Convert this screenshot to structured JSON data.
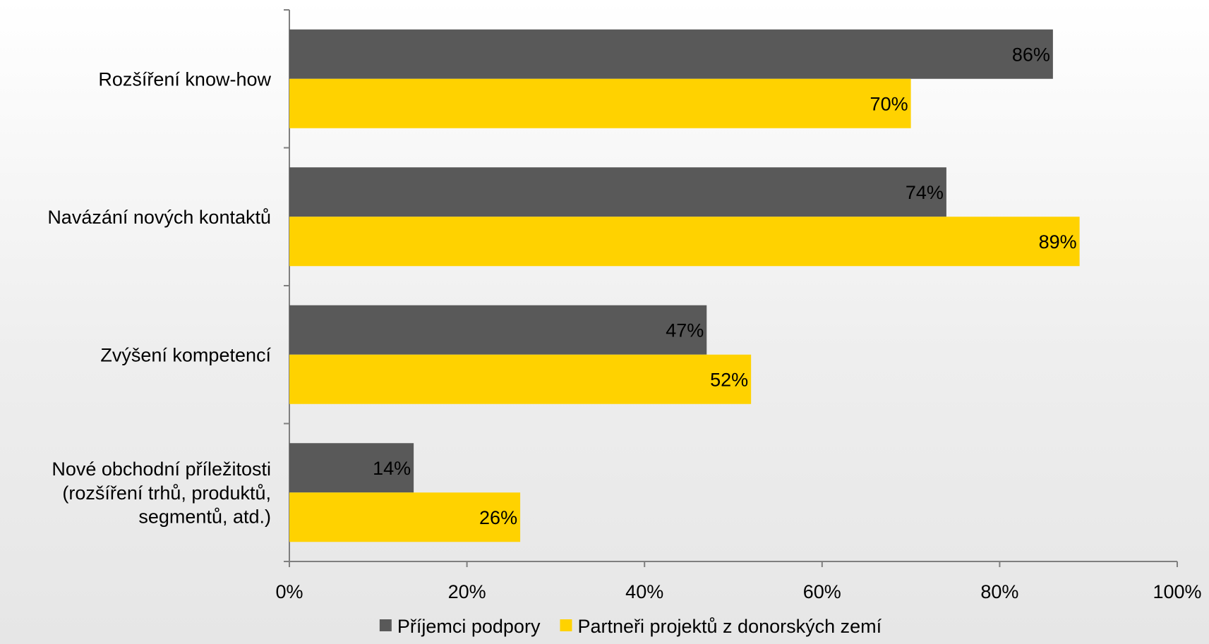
{
  "chart_data": {
    "type": "bar",
    "orientation": "horizontal",
    "categories": [
      [
        "Rozšíření know-how"
      ],
      [
        "Navázání nových kontaktů"
      ],
      [
        "Zvýšení kompetencí"
      ],
      [
        "Nové obchodní příležitosti",
        "(rozšíření trhů, produktů,",
        "segmentů, atd.)"
      ]
    ],
    "series": [
      {
        "name": "Příjemci podpory",
        "color": "#595959",
        "values": [
          86,
          74,
          47,
          14
        ],
        "labels": [
          "86%",
          "74%",
          "47%",
          "14%"
        ]
      },
      {
        "name": "Partneři projektů z donorských zemí",
        "color": "#FFD200",
        "values": [
          70,
          89,
          52,
          26
        ],
        "labels": [
          "70%",
          "89%",
          "52%",
          "26%"
        ]
      }
    ],
    "xlim": [
      0,
      100
    ],
    "x_ticks": [
      0,
      20,
      40,
      60,
      80,
      100
    ],
    "x_tick_labels": [
      "0%",
      "20%",
      "40%",
      "60%",
      "80%",
      "100%"
    ],
    "grid": false,
    "legend_position": "bottom",
    "title": "",
    "xlabel": "",
    "ylabel": ""
  }
}
